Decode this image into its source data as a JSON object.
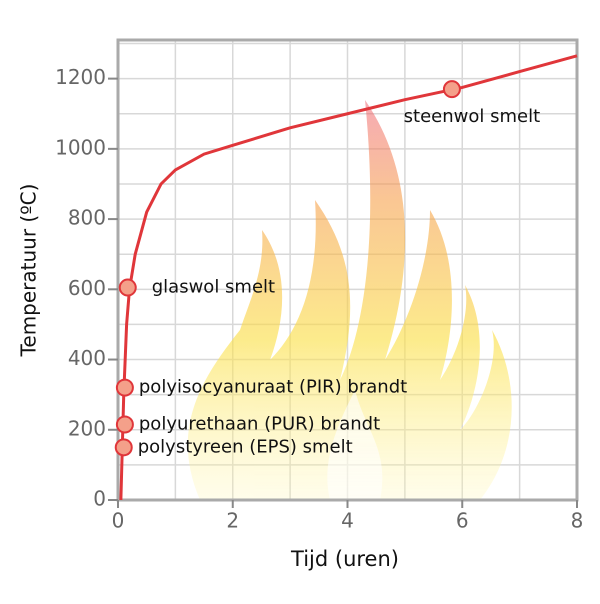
{
  "chart_data": {
    "type": "line",
    "x_label": "Tijd (uren)",
    "y_label": "Temperatuur (ºC)",
    "x": [
      0.05,
      0.1,
      0.15,
      0.2,
      0.3,
      0.5,
      0.75,
      1,
      1.5,
      2,
      3,
      4,
      5,
      6,
      7,
      8
    ],
    "values": [
      0,
      300,
      500,
      600,
      700,
      820,
      900,
      940,
      985,
      1010,
      1060,
      1100,
      1140,
      1175,
      1220,
      1265
    ],
    "color": "#e0363a",
    "xlim": [
      0,
      8
    ],
    "ylim": [
      0,
      1310
    ],
    "xticks": [
      0,
      2,
      4,
      6,
      8
    ],
    "yticks": [
      0,
      200,
      400,
      600,
      800,
      1000,
      1200
    ],
    "x_grid": [
      1,
      2,
      3,
      4,
      5,
      6,
      7
    ],
    "y_grid": [
      100,
      200,
      300,
      400,
      500,
      600,
      700,
      800,
      900,
      1000,
      1100,
      1200,
      1300
    ],
    "grid": true,
    "marker_color": "#f4a08a",
    "annotations": [
      {
        "text": "glaswol smelt",
        "x": 0.17,
        "y": 605
      },
      {
        "text": "polyisocyanuraat (PIR) brandt",
        "x": 0.12,
        "y": 320
      },
      {
        "text": "polyurethaan (PUR) brandt",
        "x": 0.12,
        "y": 215
      },
      {
        "text": "polystyreen (EPS) smelt",
        "x": 0.1,
        "y": 150
      },
      {
        "text": "steenwol smelt",
        "x": 5.82,
        "y": 1170
      }
    ]
  }
}
